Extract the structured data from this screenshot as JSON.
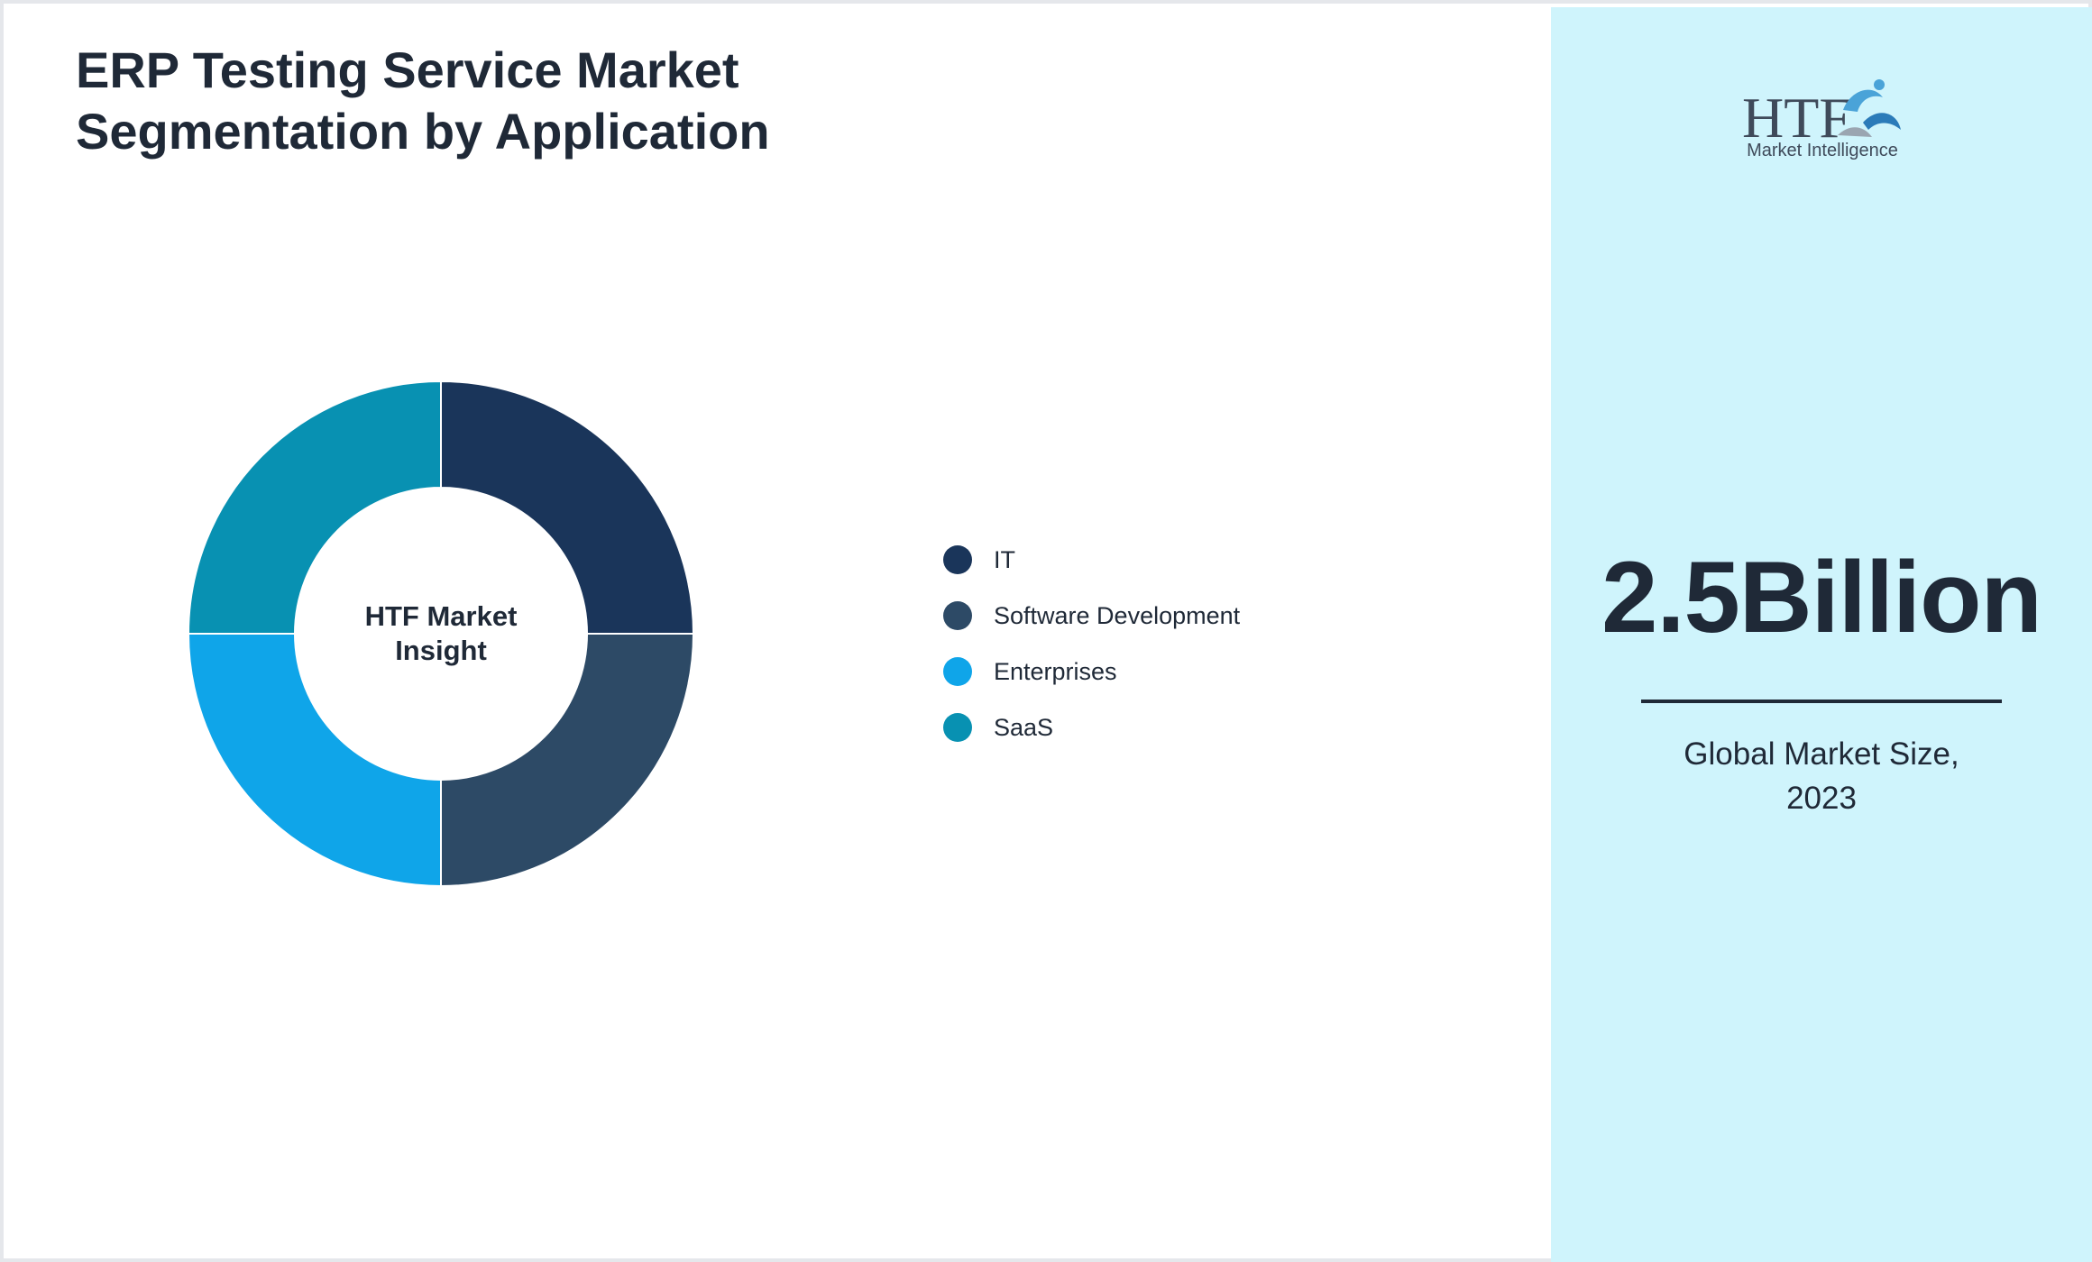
{
  "chart_data": {
    "type": "pie",
    "variant": "donut",
    "title": "ERP Testing Service Market Segmentation by Application",
    "center_label": "HTF Market Insight",
    "categories": [
      "IT",
      "Software Development",
      "Enterprises",
      "SaaS"
    ],
    "values": [
      25,
      25,
      25,
      25
    ],
    "colors": [
      "#1a355a",
      "#2d4a66",
      "#0fa5e9",
      "#0891b2"
    ],
    "legend_position": "right"
  },
  "side_panel": {
    "logo_text": "HTF",
    "logo_subtext": "Market Intelligence",
    "market_size": "2.5Billion",
    "market_size_caption": "Global Market Size, 2023",
    "background_color": "#cff4fc"
  }
}
